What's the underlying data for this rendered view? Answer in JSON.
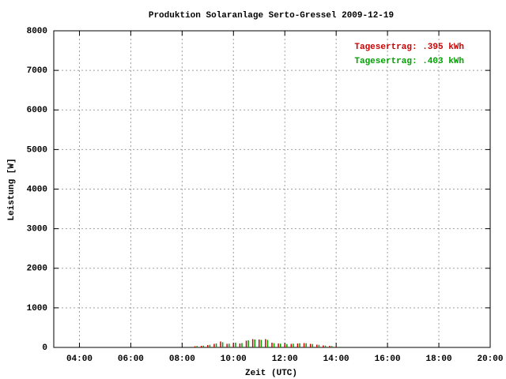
{
  "chart_data": {
    "type": "impulse",
    "title": "Produktion Solaranlage Serto-Gressel 2009-12-19",
    "x_label": "Zeit (UTC)",
    "y_label": "Leistung [W]",
    "xlim": [
      3,
      20
    ],
    "xticks": [
      {
        "value": 4,
        "label": "04:00"
      },
      {
        "value": 6,
        "label": "06:00"
      },
      {
        "value": 8,
        "label": "08:00"
      },
      {
        "value": 10,
        "label": "10:00"
      },
      {
        "value": 12,
        "label": "12:00"
      },
      {
        "value": 14,
        "label": "14:00"
      },
      {
        "value": 16,
        "label": "16:00"
      },
      {
        "value": 18,
        "label": "18:00"
      },
      {
        "value": 20,
        "label": "20:00"
      }
    ],
    "ylim": [
      0,
      8000
    ],
    "yticks": [
      0,
      1000,
      2000,
      3000,
      4000,
      5000,
      6000,
      7000,
      8000
    ],
    "grid": true,
    "legend": "top-right",
    "series": [
      {
        "name": "Tagesertrag: .395 kWh",
        "color": "#cc0000",
        "x": [
          8.5,
          8.75,
          9.0,
          9.25,
          9.5,
          9.75,
          10.0,
          10.25,
          10.5,
          10.75,
          11.0,
          11.25,
          11.5,
          11.75,
          12.0,
          12.25,
          12.5,
          12.75,
          13.0,
          13.25,
          13.5,
          13.75,
          14.0
        ],
        "values": [
          30,
          40,
          60,
          90,
          150,
          90,
          110,
          100,
          170,
          210,
          200,
          210,
          120,
          100,
          80,
          90,
          100,
          110,
          90,
          70,
          50,
          40,
          20
        ]
      },
      {
        "name": "Tagesertrag: .403 kWh",
        "color": "#00a000",
        "x": [
          8.58,
          8.83,
          9.08,
          9.33,
          9.58,
          9.83,
          10.08,
          10.33,
          10.58,
          10.83,
          11.08,
          11.33,
          11.58,
          11.83,
          12.08,
          12.33,
          12.58,
          12.83,
          13.08,
          13.33,
          13.58,
          13.83,
          14.08
        ],
        "values": [
          35,
          45,
          65,
          100,
          130,
          95,
          120,
          110,
          180,
          200,
          190,
          190,
          110,
          95,
          85,
          95,
          105,
          105,
          85,
          65,
          45,
          35,
          15
        ]
      }
    ]
  }
}
